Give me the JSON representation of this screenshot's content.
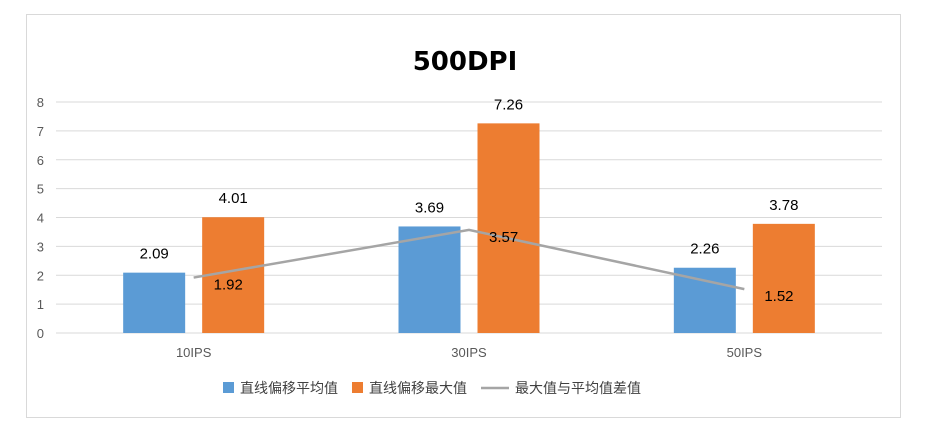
{
  "chart_data": {
    "type": "bar",
    "title": "500DPI",
    "categories": [
      "10IPS",
      "30IPS",
      "50IPS"
    ],
    "ylim": [
      0,
      8
    ],
    "yticks": [
      0,
      1,
      2,
      3,
      4,
      5,
      6,
      7,
      8
    ],
    "grid": true,
    "legend_position": "bottom",
    "series": [
      {
        "name": "直线偏移平均值",
        "type": "bar",
        "color": "#5B9BD5",
        "values": [
          2.09,
          3.69,
          2.26
        ]
      },
      {
        "name": "直线偏移最大值",
        "type": "bar",
        "color": "#ED7D31",
        "values": [
          4.01,
          7.26,
          3.78
        ]
      },
      {
        "name": "最大值与平均值差值",
        "type": "line",
        "color": "#A5A5A5",
        "values": [
          1.92,
          3.57,
          1.52
        ]
      }
    ]
  }
}
